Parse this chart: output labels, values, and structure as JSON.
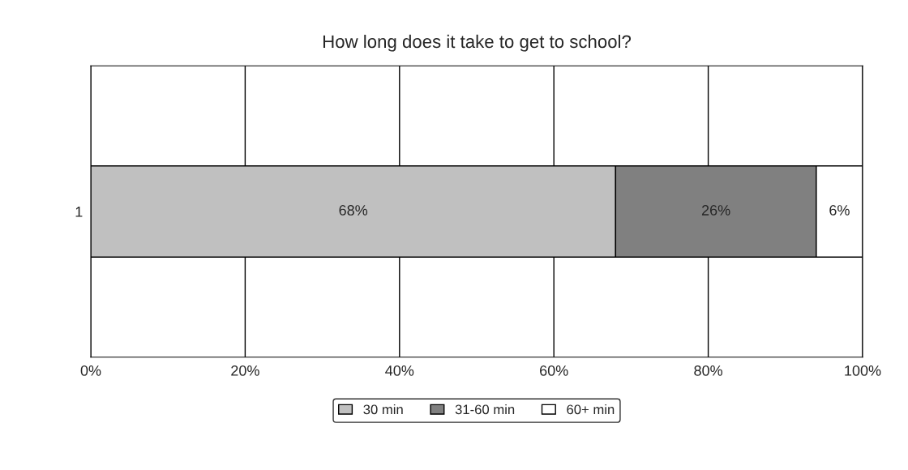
{
  "chart_data": {
    "type": "bar",
    "orientation": "horizontal",
    "stacked": true,
    "title": "How long does it take to get to school?",
    "categories": [
      "1"
    ],
    "series": [
      {
        "name": "30 min",
        "color": "#c0c0c0",
        "values": [
          68
        ],
        "value_labels": [
          "68%"
        ]
      },
      {
        "name": "31-60 min",
        "color": "#808080",
        "values": [
          26
        ],
        "value_labels": [
          "26%"
        ]
      },
      {
        "name": "60+ min",
        "color": "#ffffff",
        "values": [
          6
        ],
        "value_labels": [
          "6%"
        ]
      }
    ],
    "xlim": [
      0,
      100
    ],
    "xticks": [
      {
        "value": 0,
        "label": "0%"
      },
      {
        "value": 20,
        "label": "20%"
      },
      {
        "value": 40,
        "label": "40%"
      },
      {
        "value": 60,
        "label": "60%"
      },
      {
        "value": 80,
        "label": "80%"
      },
      {
        "value": 100,
        "label": "100%"
      }
    ],
    "grid": "x",
    "legend": "bottom"
  }
}
